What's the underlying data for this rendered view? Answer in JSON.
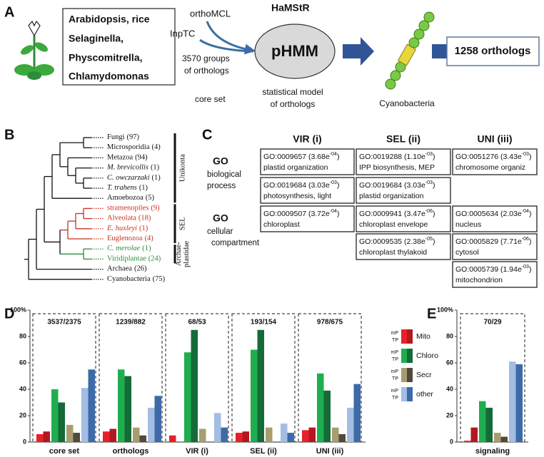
{
  "panel_labels": [
    "A",
    "B",
    "C",
    "D",
    "E"
  ],
  "panel_a": {
    "species": [
      "Arabidopsis, rice",
      "Selaginella,",
      "Physcomitrella,",
      "Chlamydomonas"
    ],
    "tools": [
      "orthoMCL",
      "InpTC"
    ],
    "method": "HaMStR",
    "groups": [
      "3570 groups",
      "of orthologs"
    ],
    "core_set": "core set",
    "model": "pHMM",
    "model_desc": [
      "statistical model",
      "of orthologs"
    ],
    "target": "Cyanobacteria",
    "result": "1258 orthologs"
  },
  "panel_b": {
    "taxa": [
      {
        "name": "Fungi",
        "count": "(97)",
        "italic": false,
        "color": "#111111"
      },
      {
        "name": "Microsporidia",
        "count": "(4)",
        "italic": false,
        "color": "#111111"
      },
      {
        "name": "Metazoa",
        "count": "(94)",
        "italic": false,
        "color": "#111111"
      },
      {
        "name": "M. brevicollis",
        "count": "(1)",
        "italic": true,
        "color": "#111111"
      },
      {
        "name": "C. owczarzaki",
        "count": "(1)",
        "italic": true,
        "color": "#111111"
      },
      {
        "name": "T. trahens",
        "count": "(1)",
        "italic": true,
        "color": "#111111"
      },
      {
        "name": "Amoebozoa",
        "count": "(5)",
        "italic": false,
        "color": "#111111"
      },
      {
        "name": "stramenopiles",
        "count": "(9)",
        "italic": false,
        "color": "#c8321e"
      },
      {
        "name": "Alveolata",
        "count": "(18)",
        "italic": false,
        "color": "#c8321e"
      },
      {
        "name": "E. huxleyi",
        "count": "(1)",
        "italic": true,
        "color": "#c8321e"
      },
      {
        "name": "Euglenozoa",
        "count": "(4)",
        "italic": false,
        "color": "#c8321e"
      },
      {
        "name": "C. merolae",
        "count": "(1)",
        "italic": true,
        "color": "#2e8b3a"
      },
      {
        "name": "Viridiplantae",
        "count": "(24)",
        "italic": false,
        "color": "#2e8b3a"
      },
      {
        "name": "Archaea",
        "count": "(26)",
        "italic": false,
        "color": "#111111"
      },
      {
        "name": "Cyanobacteria",
        "count": "(75)",
        "italic": false,
        "color": "#111111"
      }
    ],
    "clades": [
      [
        "Unikonta"
      ],
      [
        "SEL"
      ],
      [
        "Archae-",
        "plastidae"
      ]
    ]
  },
  "panel_c": {
    "columns": [
      "VIR (i)",
      "SEL (ii)",
      "UNI (iii)"
    ],
    "rows": [
      {
        "label": [
          "GO",
          "biological",
          "process"
        ],
        "cells": [
          [
            {
              "runs": [
                "GO:0009657 (3.68e",
                "-04",
                ")"
              ],
              "term": "plastid organization"
            },
            {
              "runs": [
                "GO:0019684 (3.03e",
                "-03",
                ")"
              ],
              "term": "photosynthesis, light"
            }
          ],
          [
            {
              "runs": [
                "GO:0019288 (1.10e",
                "-03",
                ")"
              ],
              "term": "IPP biosynthesis, MEP"
            },
            {
              "runs": [
                "GO:0019684 (3.03e",
                "-03",
                ")"
              ],
              "term": "plastid organization"
            }
          ],
          [
            {
              "runs": [
                "GO:0051276 (3.43e",
                "-03",
                ")"
              ],
              "term": "chromosome organiz"
            }
          ]
        ]
      },
      {
        "label": [
          "GO",
          "cellular",
          "compartment"
        ],
        "cells": [
          [
            {
              "runs": [
                "GO:0009507 (3.72e",
                "-04",
                ")"
              ],
              "term": "chloroplast"
            }
          ],
          [
            {
              "runs": [
                "GO:0009941 (3.47e",
                "-06",
                ")"
              ],
              "term": "chloroplast envelope"
            },
            {
              "runs": [
                "GO:0009535 (2.38e",
                "-05",
                ")"
              ],
              "term": "chloroplast thylakoid"
            }
          ],
          [
            {
              "runs": [
                "GO:0005634 (2.03e",
                "-04",
                ")"
              ],
              "term": "nucleus"
            },
            {
              "runs": [
                "GO:0005829 (7.71e",
                "-06",
                ")"
              ],
              "term": "cytosol"
            },
            {
              "runs": [
                "GO:0005739 (1.94e",
                "-03",
                ")"
              ],
              "term": "mitochondrion"
            }
          ]
        ]
      }
    ]
  },
  "chart_data": [
    {
      "type": "bar",
      "categories": [
        "core set",
        "orthologs",
        "VIR (i)",
        "SEL (ii)",
        "UNI (iii)"
      ],
      "counts": [
        "3537/2375",
        "1239/882",
        "68/53",
        "193/154",
        "978/675"
      ],
      "sublabels": [
        "mP",
        "TP"
      ],
      "series": [
        {
          "name": "Mito",
          "color": "#e8202a",
          "tp_color": "#b3171f",
          "mP": [
            6,
            8,
            5,
            7,
            9
          ],
          "TP": [
            8,
            10,
            0,
            8,
            11
          ]
        },
        {
          "name": "Chloro",
          "color": "#1fae4f",
          "tp_color": "#156b38",
          "mP": [
            40,
            55,
            68,
            70,
            52
          ],
          "TP": [
            30,
            50,
            85,
            85,
            39
          ]
        },
        {
          "name": "Secr",
          "color": "#a79d6e",
          "tp_color": "#4f4a3a",
          "mP": [
            13,
            11,
            10,
            11,
            11
          ],
          "TP": [
            7,
            5,
            0,
            0,
            6
          ]
        },
        {
          "name": "other",
          "color": "#a3bde3",
          "tp_color": "#3d6aa8",
          "mP": [
            41,
            26,
            22,
            14,
            26
          ],
          "TP": [
            55,
            35,
            11,
            7,
            44
          ]
        }
      ],
      "ylim": [
        0,
        100
      ],
      "yticks": [
        0,
        20,
        40,
        60,
        80,
        {
          "value": 100,
          "label": "100%"
        }
      ]
    },
    {
      "type": "bar",
      "categories": [
        "signaling"
      ],
      "counts": [
        "70/29"
      ],
      "series": [
        {
          "color": "#e8202a",
          "tp_color": "#b3171f",
          "mP": [
            1
          ],
          "TP": [
            11
          ]
        },
        {
          "color": "#1fae4f",
          "tp_color": "#156b38",
          "mP": [
            31
          ],
          "TP": [
            26
          ]
        },
        {
          "color": "#a79d6e",
          "tp_color": "#4f4a3a",
          "mP": [
            7
          ],
          "TP": [
            4
          ]
        },
        {
          "color": "#a3bde3",
          "tp_color": "#3d6aa8",
          "mP": [
            61
          ],
          "TP": [
            59
          ]
        }
      ],
      "ylim": [
        0,
        100
      ],
      "yticks": [
        0,
        20,
        40,
        60,
        80,
        {
          "value": 100,
          "label": "100%"
        }
      ]
    }
  ]
}
